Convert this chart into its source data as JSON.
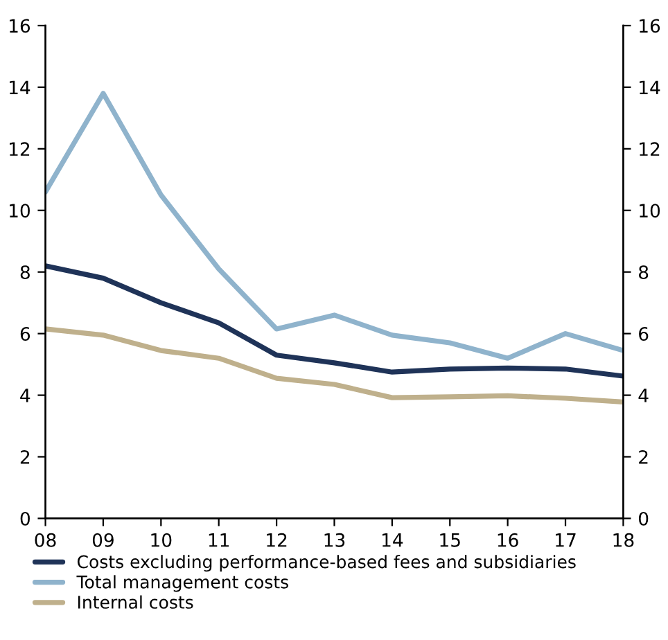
{
  "chart_data": {
    "type": "line",
    "categories": [
      "08",
      "09",
      "10",
      "11",
      "12",
      "13",
      "14",
      "15",
      "16",
      "17",
      "18"
    ],
    "series": [
      {
        "name": "Costs excluding performance-based fees and subsidiaries",
        "color": "#1f3358",
        "values": [
          8.2,
          7.8,
          7.0,
          6.35,
          5.3,
          5.05,
          4.75,
          4.85,
          4.88,
          4.85,
          4.62
        ]
      },
      {
        "name": "Total management costs",
        "color": "#8fb3cc",
        "values": [
          10.6,
          13.8,
          10.5,
          8.1,
          6.15,
          6.6,
          5.95,
          5.7,
          5.2,
          6.0,
          5.45
        ]
      },
      {
        "name": "Internal costs",
        "color": "#bfb08c",
        "values": [
          6.15,
          5.95,
          5.45,
          5.2,
          4.55,
          4.35,
          3.92,
          3.95,
          3.98,
          3.9,
          3.78
        ]
      }
    ],
    "ylim": [
      0,
      16
    ],
    "yticks": [
      0,
      2,
      4,
      6,
      8,
      10,
      12,
      14,
      16
    ],
    "y2lim": [
      0,
      16
    ],
    "y2ticks": [
      0,
      2,
      4,
      6,
      8,
      10,
      12,
      14,
      16
    ],
    "grid": false,
    "legend": "bottom",
    "marker": "none",
    "line_style": "solid"
  }
}
